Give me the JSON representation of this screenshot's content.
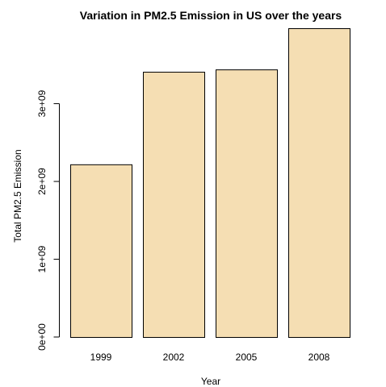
{
  "chart_data": {
    "type": "bar",
    "title": "Variation in PM2.5 Emission in US over the years",
    "xlabel": "Year",
    "ylabel": "Total PM2.5 Emission",
    "categories": [
      "1999",
      "2002",
      "2005",
      "2008"
    ],
    "values": [
      2220000000,
      3410000000,
      3440000000,
      3970000000
    ],
    "ylim": [
      0,
      3970000000
    ],
    "yticks": [
      0,
      1000000000,
      2000000000,
      3000000000
    ],
    "ytick_labels": [
      "0e+00",
      "1e+09",
      "2e+09",
      "3e+09"
    ],
    "bar_color": "#f5deb3",
    "grid": false,
    "legend": "none"
  }
}
